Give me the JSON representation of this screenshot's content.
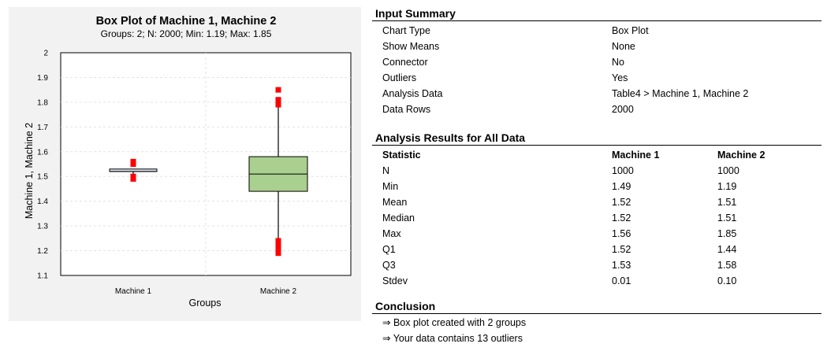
{
  "chart_data": {
    "type": "box",
    "title": "Box Plot of Machine 1, Machine 2",
    "subtitle": "Groups: 2; N: 2000; Min: 1.19; Max: 1.85",
    "xlabel": "Groups",
    "ylabel": "Machine 1, Machine 2",
    "ylim": [
      1.1,
      2.0
    ],
    "yticks": [
      "1.1",
      "1.2",
      "1.3",
      "1.4",
      "1.5",
      "1.6",
      "1.7",
      "1.8",
      "1.9",
      "2"
    ],
    "categories": [
      "Machine 1",
      "Machine 2"
    ],
    "boxes": [
      {
        "name": "Machine 1",
        "min": 1.49,
        "q1": 1.52,
        "median": 1.52,
        "q3": 1.53,
        "max": 1.56,
        "whisker_low": 1.51,
        "whisker_high": 1.53,
        "outliers": [
          1.49,
          1.5,
          1.55,
          1.56
        ]
      },
      {
        "name": "Machine 2",
        "min": 1.19,
        "q1": 1.44,
        "median": 1.51,
        "q3": 1.58,
        "max": 1.85,
        "whisker_low": 1.25,
        "whisker_high": 1.78,
        "outliers": [
          1.19,
          1.21,
          1.22,
          1.24,
          1.79,
          1.81,
          1.85
        ]
      }
    ],
    "colors": {
      "machine1_box": "#d9e1f2",
      "machine2_box": "#a9d08e",
      "outlier": "#ff0000"
    },
    "grid": true,
    "legend": "none"
  },
  "input_summary": {
    "heading": "Input Summary",
    "rows": [
      {
        "label": "Chart Type",
        "value": "Box Plot"
      },
      {
        "label": "Show Means",
        "value": "None"
      },
      {
        "label": "Connector",
        "value": "No"
      },
      {
        "label": "Outliers",
        "value": "Yes"
      },
      {
        "label": "Analysis Data",
        "value": "Table4 > Machine 1, Machine 2"
      },
      {
        "label": "Data Rows",
        "value": "2000"
      }
    ]
  },
  "analysis_results": {
    "heading": "Analysis Results for All Data",
    "columns": [
      "Statistic",
      "Machine 1",
      "Machine 2"
    ],
    "rows": [
      [
        "N",
        "1000",
        "1000"
      ],
      [
        "Min",
        "1.49",
        "1.19"
      ],
      [
        "Mean",
        "1.52",
        "1.51"
      ],
      [
        "Median",
        "1.52",
        "1.51"
      ],
      [
        "Max",
        "1.56",
        "1.85"
      ],
      [
        "Q1",
        "1.52",
        "1.44"
      ],
      [
        "Q3",
        "1.53",
        "1.58"
      ],
      [
        "Stdev",
        "0.01",
        "0.10"
      ]
    ]
  },
  "conclusion": {
    "heading": "Conclusion",
    "items": [
      "⇒ Box plot created with 2 groups",
      "⇒ Your data contains 13 outliers"
    ]
  }
}
